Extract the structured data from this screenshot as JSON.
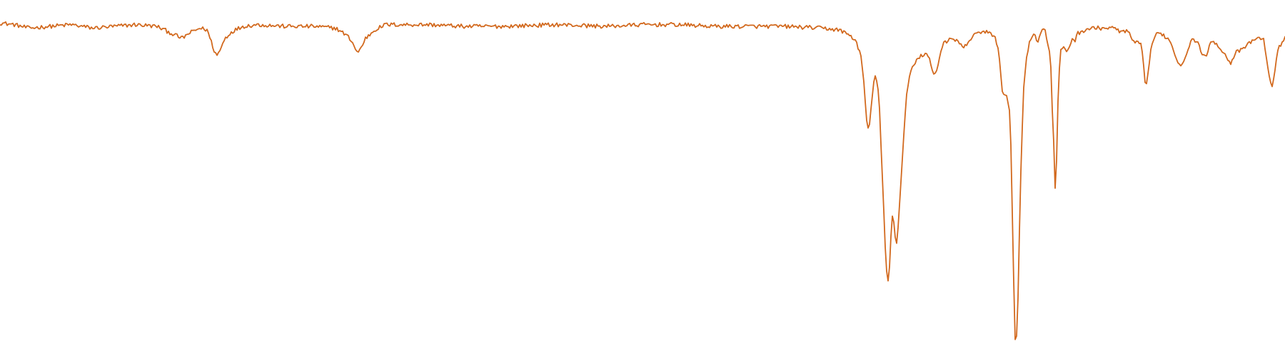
{
  "chart_data": {
    "type": "line",
    "title": "",
    "xlabel": "",
    "ylabel": "",
    "axes_visible": false,
    "grid": false,
    "legend": "none",
    "xlim": [
      0,
      1800
    ],
    "ylim": [
      0,
      1.0
    ],
    "noise_amplitude": 0.006,
    "series": [
      {
        "color": "#d2691e",
        "baseline": 0.94,
        "points": [
          [
            0,
            0.95
          ],
          [
            20,
            0.945
          ],
          [
            40,
            0.935
          ],
          [
            70,
            0.94
          ],
          [
            100,
            0.945
          ],
          [
            130,
            0.935
          ],
          [
            160,
            0.94
          ],
          [
            190,
            0.945
          ],
          [
            220,
            0.94
          ],
          [
            240,
            0.92
          ],
          [
            255,
            0.905
          ],
          [
            265,
            0.92
          ],
          [
            280,
            0.935
          ],
          [
            290,
            0.93
          ],
          [
            296,
            0.895
          ],
          [
            300,
            0.87
          ],
          [
            304,
            0.855
          ],
          [
            308,
            0.87
          ],
          [
            315,
            0.905
          ],
          [
            325,
            0.925
          ],
          [
            340,
            0.94
          ],
          [
            360,
            0.945
          ],
          [
            400,
            0.94
          ],
          [
            440,
            0.94
          ],
          [
            470,
            0.935
          ],
          [
            485,
            0.915
          ],
          [
            492,
            0.9
          ],
          [
            498,
            0.875
          ],
          [
            501,
            0.862
          ],
          [
            505,
            0.875
          ],
          [
            512,
            0.905
          ],
          [
            525,
            0.93
          ],
          [
            540,
            0.945
          ],
          [
            600,
            0.945
          ],
          [
            650,
            0.94
          ],
          [
            700,
            0.94
          ],
          [
            780,
            0.945
          ],
          [
            850,
            0.94
          ],
          [
            900,
            0.945
          ],
          [
            950,
            0.945
          ],
          [
            1000,
            0.94
          ],
          [
            1050,
            0.94
          ],
          [
            1100,
            0.94
          ],
          [
            1150,
            0.935
          ],
          [
            1175,
            0.93
          ],
          [
            1190,
            0.915
          ],
          [
            1198,
            0.9
          ],
          [
            1203,
            0.875
          ],
          [
            1207,
            0.84
          ],
          [
            1210,
            0.78
          ],
          [
            1212,
            0.72
          ],
          [
            1214,
            0.665
          ],
          [
            1216,
            0.64
          ],
          [
            1218,
            0.655
          ],
          [
            1220,
            0.7
          ],
          [
            1223,
            0.76
          ],
          [
            1226,
            0.8
          ],
          [
            1229,
            0.78
          ],
          [
            1232,
            0.7
          ],
          [
            1235,
            0.55
          ],
          [
            1238,
            0.4
          ],
          [
            1240,
            0.3
          ],
          [
            1242,
            0.225
          ],
          [
            1244,
            0.2
          ],
          [
            1246,
            0.24
          ],
          [
            1248,
            0.33
          ],
          [
            1250,
            0.39
          ],
          [
            1252,
            0.37
          ],
          [
            1254,
            0.33
          ],
          [
            1256,
            0.315
          ],
          [
            1258,
            0.36
          ],
          [
            1261,
            0.45
          ],
          [
            1264,
            0.56
          ],
          [
            1267,
            0.66
          ],
          [
            1270,
            0.74
          ],
          [
            1274,
            0.8
          ],
          [
            1278,
            0.82
          ],
          [
            1284,
            0.84
          ],
          [
            1290,
            0.855
          ],
          [
            1295,
            0.86
          ],
          [
            1300,
            0.855
          ],
          [
            1304,
            0.83
          ],
          [
            1307,
            0.81
          ],
          [
            1310,
            0.8
          ],
          [
            1313,
            0.82
          ],
          [
            1317,
            0.86
          ],
          [
            1322,
            0.895
          ],
          [
            1330,
            0.9
          ],
          [
            1340,
            0.9
          ],
          [
            1346,
            0.885
          ],
          [
            1350,
            0.875
          ],
          [
            1356,
            0.895
          ],
          [
            1365,
            0.915
          ],
          [
            1375,
            0.925
          ],
          [
            1385,
            0.925
          ],
          [
            1390,
            0.91
          ],
          [
            1394,
            0.905
          ],
          [
            1398,
            0.88
          ],
          [
            1400,
            0.85
          ],
          [
            1402,
            0.8
          ],
          [
            1404,
            0.75
          ],
          [
            1406,
            0.74
          ],
          [
            1410,
            0.735
          ],
          [
            1412,
            0.72
          ],
          [
            1414,
            0.69
          ],
          [
            1416,
            0.6
          ],
          [
            1418,
            0.4
          ],
          [
            1420,
            0.2
          ],
          [
            1421,
            0.08
          ],
          [
            1422,
            0.035
          ],
          [
            1423,
            0.02
          ],
          [
            1424,
            0.04
          ],
          [
            1426,
            0.15
          ],
          [
            1428,
            0.35
          ],
          [
            1431,
            0.6
          ],
          [
            1434,
            0.76
          ],
          [
            1437,
            0.84
          ],
          [
            1440,
            0.87
          ],
          [
            1443,
            0.9
          ],
          [
            1446,
            0.91
          ],
          [
            1449,
            0.92
          ],
          [
            1452,
            0.9
          ],
          [
            1455,
            0.9
          ],
          [
            1458,
            0.925
          ],
          [
            1461,
            0.94
          ],
          [
            1464,
            0.925
          ],
          [
            1467,
            0.9
          ],
          [
            1470,
            0.87
          ],
          [
            1472,
            0.82
          ],
          [
            1474,
            0.7
          ],
          [
            1476,
            0.6
          ],
          [
            1477,
            0.5
          ],
          [
            1478,
            0.47
          ],
          [
            1480,
            0.55
          ],
          [
            1482,
            0.72
          ],
          [
            1484,
            0.82
          ],
          [
            1486,
            0.87
          ],
          [
            1490,
            0.875
          ],
          [
            1494,
            0.87
          ],
          [
            1498,
            0.88
          ],
          [
            1502,
            0.905
          ],
          [
            1506,
            0.9
          ],
          [
            1510,
            0.92
          ],
          [
            1520,
            0.93
          ],
          [
            1530,
            0.935
          ],
          [
            1540,
            0.935
          ],
          [
            1550,
            0.935
          ],
          [
            1560,
            0.935
          ],
          [
            1570,
            0.925
          ],
          [
            1580,
            0.925
          ],
          [
            1585,
            0.905
          ],
          [
            1590,
            0.89
          ],
          [
            1595,
            0.895
          ],
          [
            1598,
            0.885
          ],
          [
            1600,
            0.86
          ],
          [
            1602,
            0.82
          ],
          [
            1604,
            0.78
          ],
          [
            1606,
            0.77
          ],
          [
            1608,
            0.8
          ],
          [
            1611,
            0.86
          ],
          [
            1615,
            0.9
          ],
          [
            1620,
            0.915
          ],
          [
            1625,
            0.92
          ],
          [
            1630,
            0.915
          ],
          [
            1635,
            0.905
          ],
          [
            1640,
            0.895
          ],
          [
            1644,
            0.87
          ],
          [
            1648,
            0.845
          ],
          [
            1652,
            0.83
          ],
          [
            1655,
            0.83
          ],
          [
            1659,
            0.845
          ],
          [
            1663,
            0.87
          ],
          [
            1667,
            0.89
          ],
          [
            1672,
            0.905
          ],
          [
            1676,
            0.895
          ],
          [
            1680,
            0.885
          ],
          [
            1684,
            0.86
          ],
          [
            1688,
            0.85
          ],
          [
            1692,
            0.87
          ],
          [
            1696,
            0.89
          ],
          [
            1700,
            0.895
          ],
          [
            1705,
            0.89
          ],
          [
            1710,
            0.875
          ],
          [
            1715,
            0.86
          ],
          [
            1720,
            0.845
          ],
          [
            1724,
            0.835
          ],
          [
            1728,
            0.85
          ],
          [
            1732,
            0.865
          ],
          [
            1738,
            0.87
          ],
          [
            1744,
            0.88
          ],
          [
            1750,
            0.89
          ],
          [
            1755,
            0.9
          ],
          [
            1760,
            0.905
          ],
          [
            1765,
            0.905
          ],
          [
            1770,
            0.9
          ],
          [
            1773,
            0.87
          ],
          [
            1776,
            0.82
          ],
          [
            1779,
            0.775
          ],
          [
            1782,
            0.765
          ],
          [
            1785,
            0.8
          ],
          [
            1788,
            0.85
          ],
          [
            1792,
            0.88
          ],
          [
            1796,
            0.895
          ],
          [
            1800,
            0.91
          ]
        ]
      }
    ]
  }
}
